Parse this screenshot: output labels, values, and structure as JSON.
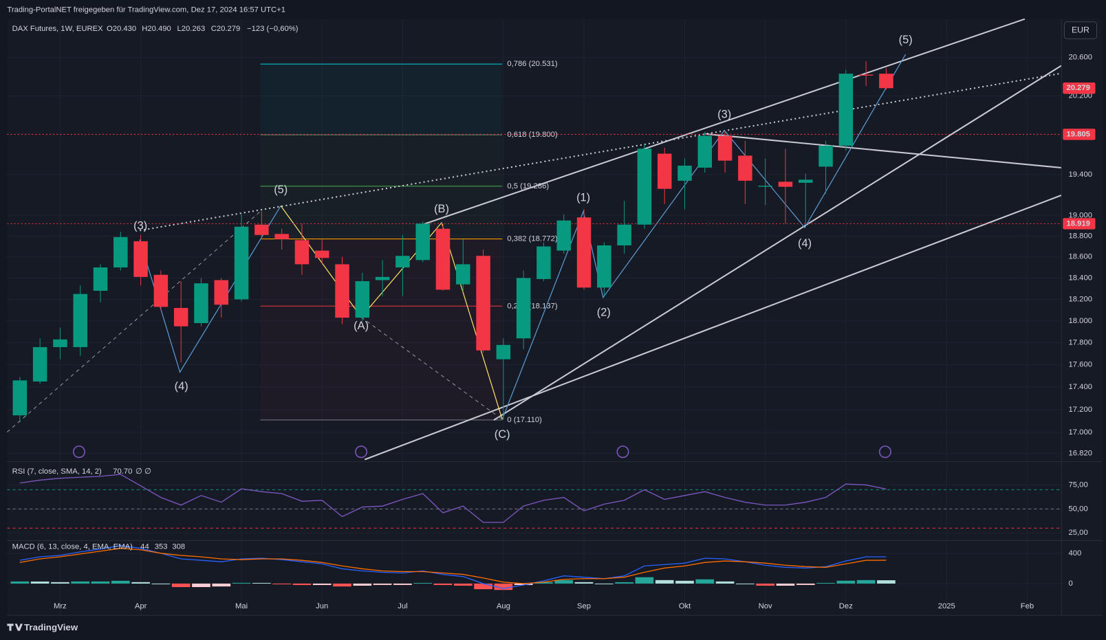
{
  "header": {
    "title": "Trading-PortalNET freigegeben für TradingView.com, Dez 17, 2024 16:57 UTC+1",
    "symbol": "DAX Futures, 1W, EUREX",
    "ohlc": [
      "O20.430",
      "H20.490",
      "L20.263",
      "C20.279"
    ],
    "change": "−123 (−0,60%)",
    "currency": "EUR",
    "brand": "TradingView"
  },
  "chart_data": [
    {
      "type": "candlestick",
      "categories": [
        null,
        null,
        null,
        null,
        null,
        null,
        null,
        null,
        null,
        null,
        null,
        null,
        null,
        null,
        null,
        null,
        null,
        null,
        null,
        null,
        null,
        null,
        null,
        null,
        null,
        null,
        null,
        null,
        null,
        null,
        null,
        null,
        null,
        null,
        null,
        null,
        null,
        null,
        null,
        null,
        null,
        null,
        null,
        null
      ],
      "open": [
        17150,
        17450,
        17760,
        17760,
        18280,
        18500,
        18750,
        18430,
        18120,
        17980,
        18380,
        18200,
        18910,
        18820,
        18760,
        18660,
        18530,
        18030,
        18380,
        18500,
        18570,
        18870,
        18340,
        18610,
        17650,
        17840,
        18390,
        18660,
        18980,
        18310,
        18710,
        18910,
        19610,
        19340,
        19470,
        19790,
        19590,
        19280,
        19330,
        19320,
        19480,
        19690,
        20420,
        20430
      ],
      "high": [
        17490,
        17840,
        17940,
        18330,
        18530,
        18840,
        18810,
        18470,
        18370,
        18400,
        18400,
        19010,
        19040,
        18870,
        18920,
        18770,
        18600,
        18450,
        18570,
        18810,
        18940,
        18920,
        18770,
        18670,
        17840,
        18470,
        18740,
        19010,
        19060,
        18740,
        19140,
        19710,
        19670,
        19560,
        19830,
        19840,
        19740,
        19560,
        19660,
        19410,
        19740,
        20470,
        20560,
        20490
      ],
      "low": [
        17090,
        17430,
        17650,
        17680,
        18170,
        18470,
        18330,
        18100,
        17620,
        17950,
        18030,
        18180,
        18770,
        18670,
        18430,
        18530,
        17970,
        18000,
        18230,
        18230,
        18550,
        18280,
        18270,
        17710,
        17110,
        17740,
        18370,
        18630,
        18290,
        18220,
        18630,
        18870,
        19110,
        19060,
        19420,
        19420,
        19110,
        19100,
        18920,
        18910,
        19210,
        19640,
        20300,
        20263
      ],
      "close": [
        17460,
        17760,
        17830,
        18250,
        18500,
        18790,
        18410,
        18130,
        17950,
        18350,
        18150,
        18890,
        18810,
        18770,
        18530,
        18590,
        18030,
        18370,
        18410,
        18610,
        18920,
        18290,
        18530,
        17730,
        17780,
        18400,
        18700,
        18950,
        18310,
        18710,
        18910,
        19660,
        19260,
        19490,
        19790,
        19540,
        19340,
        19290,
        19280,
        19350,
        19690,
        20430,
        20410,
        20279
      ],
      "up_color": "#089981",
      "down_color": "#f23645",
      "log_scale": true,
      "grid": true,
      "xlim": [
        -0.63,
        51.7
      ],
      "xticks": [
        {
          "value": 2,
          "label": "Mrz"
        },
        {
          "value": 6,
          "label": "Apr"
        },
        {
          "value": 11,
          "label": "Mai"
        },
        {
          "value": 15,
          "label": "Jun"
        },
        {
          "value": 19,
          "label": "Jul"
        },
        {
          "value": 24,
          "label": "Aug"
        },
        {
          "value": 28,
          "label": "Sep"
        },
        {
          "value": 33,
          "label": "Okt"
        },
        {
          "value": 37,
          "label": "Nov"
        },
        {
          "value": 41,
          "label": "Dez"
        },
        {
          "value": 46,
          "label": "2025"
        },
        {
          "value": 50,
          "label": "Feb"
        }
      ],
      "ylim": [
        16760,
        21010
      ],
      "yticks": [
        {
          "value": 20600,
          "label": "20.600"
        },
        {
          "value": 20200,
          "label": "20.200"
        },
        {
          "value": 19400,
          "label": "19.400"
        },
        {
          "value": 19000,
          "label": "19.000"
        },
        {
          "value": 18800,
          "label": "18.800"
        },
        {
          "value": 18600,
          "label": "18.600"
        },
        {
          "value": 18400,
          "label": "18.400"
        },
        {
          "value": 18200,
          "label": "18.200"
        },
        {
          "value": 18000,
          "label": "18.000"
        },
        {
          "value": 17800,
          "label": "17.800"
        },
        {
          "value": 17600,
          "label": "17.600"
        },
        {
          "value": 17400,
          "label": "17.400"
        },
        {
          "value": 17200,
          "label": "17.200"
        },
        {
          "value": 17000,
          "label": "17.000"
        },
        {
          "value": 16820,
          "label": "16.820"
        }
      ],
      "price_lines": [
        {
          "value": 19805,
          "label": "19.805",
          "color": "#f23645"
        },
        {
          "value": 18919,
          "label": "18.919",
          "color": "#f23645"
        }
      ],
      "last_price": {
        "value": 20279,
        "label": "20.279",
        "color": "#f23645"
      },
      "fib_levels": [
        {
          "value": 20531,
          "label": "0,786 (20.531)",
          "color": "#00bcd4"
        },
        {
          "value": 19800,
          "label": "0,618 (19.800)",
          "color": "#5d8a6e"
        },
        {
          "value": 19286,
          "label": "0,5 (19.286)",
          "color": "#4caf50"
        },
        {
          "value": 18772,
          "label": "0,382 (18.772)",
          "color": "#ff9800"
        },
        {
          "value": 18137,
          "label": "0,236 (18.137)",
          "color": "#f23645"
        },
        {
          "value": 17110,
          "label": "0 (17.110)",
          "color": "#787b86"
        }
      ],
      "wave_labels": [
        {
          "label": "(3)",
          "color": "#5b9bd5"
        },
        {
          "label": "(4)",
          "color": "#5b9bd5"
        },
        {
          "label": "(5)",
          "color": "#5b9bd5"
        },
        {
          "label": "(A)",
          "color": "#ffe066"
        },
        {
          "label": "(B)",
          "color": "#ffe066"
        },
        {
          "label": "(C)",
          "color": "#ffe066"
        },
        {
          "label": "(1)",
          "color": "#5b9bd5"
        },
        {
          "label": "(2)",
          "color": "#5b9bd5"
        },
        {
          "label": "(3)",
          "color": "#5b9bd5"
        },
        {
          "label": "(4)",
          "color": "#5b9bd5"
        },
        {
          "label": "(5)",
          "color": "#5b9bd5"
        }
      ]
    },
    {
      "type": "line",
      "title": "RSI (7, close, SMA, 14, 2)",
      "legend_extra": "∅ ∅",
      "series": [
        {
          "color": "#7e57c2",
          "legend_label": "70.70",
          "values": [
            77,
            80,
            82,
            83,
            84,
            86,
            74,
            62,
            54,
            64,
            57,
            71,
            68,
            66,
            58,
            59,
            42,
            52,
            53,
            60,
            66,
            46,
            53,
            36,
            36,
            53,
            59,
            62,
            48,
            55,
            59,
            70,
            60,
            64,
            68,
            62,
            57,
            54,
            54,
            57,
            62,
            76,
            75,
            70.7
          ]
        }
      ],
      "levels": [
        {
          "value": 70,
          "color": "#089981"
        },
        {
          "value": 50,
          "color": "#787b86"
        },
        {
          "value": 30,
          "color": "#f23645"
        }
      ],
      "ylim": [
        17,
        98.5
      ],
      "yticks": [
        {
          "value": 75,
          "label": "75,00"
        },
        {
          "value": 50,
          "label": "50,00"
        },
        {
          "value": 25,
          "label": "25,00"
        }
      ]
    },
    {
      "type": "macd",
      "title": "MACD (6, 13, close, 4, EMA, EMA)",
      "series": [
        {
          "color": "#2962ff",
          "values": [
            307,
            353,
            372,
            419,
            456,
            502,
            465,
            400,
            326,
            307,
            288,
            326,
            335,
            316,
            288,
            260,
            195,
            167,
            149,
            140,
            167,
            121,
            93,
            0,
            -65,
            -19,
            37,
            102,
            84,
            65,
            102,
            233,
            251,
            270,
            335,
            326,
            288,
            242,
            214,
            205,
            223,
            298,
            353,
            353
          ]
        },
        {
          "color": "#ff6d00",
          "values": [
            279,
            326,
            353,
            391,
            428,
            465,
            446,
            400,
            372,
            353,
            326,
            316,
            326,
            326,
            307,
            279,
            233,
            195,
            167,
            158,
            158,
            140,
            121,
            74,
            19,
            0,
            19,
            56,
            65,
            65,
            84,
            149,
            205,
            233,
            279,
            298,
            288,
            270,
            242,
            223,
            214,
            260,
            307,
            308
          ]
        },
        {
          "color": "#26a69a",
          "values": [
            28,
            27,
            19,
            28,
            28,
            37,
            19,
            0,
            -46,
            -46,
            -38,
            10,
            9,
            -10,
            -19,
            -19,
            -38,
            -28,
            -18,
            -18,
            9,
            -19,
            -28,
            -74,
            -84,
            -19,
            18,
            46,
            19,
            0,
            18,
            84,
            46,
            37,
            56,
            28,
            0,
            -28,
            -28,
            -18,
            9,
            38,
            46,
            44
          ]
        }
      ],
      "ylim": [
        -419,
        567
      ],
      "yticks": [
        400,
        0
      ]
    }
  ]
}
